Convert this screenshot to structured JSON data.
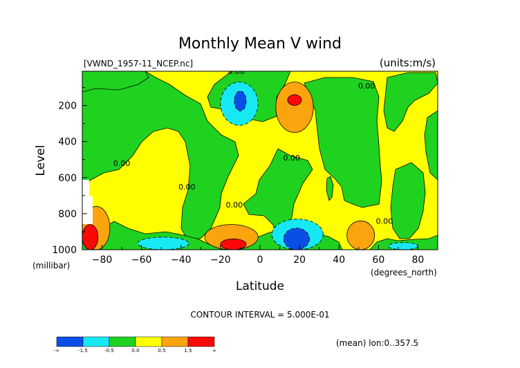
{
  "chart_data": {
    "type": "contour",
    "title": "Monthly Mean V wind",
    "dataset_label": "[VWND_1957-11_NCEP.nc]",
    "units_label": "(units:m/s)",
    "xlabel": "Latitude",
    "x_units": "(degrees_north)",
    "ylabel": "Level",
    "y_units": "(millibar)",
    "xlim": [
      -90,
      90
    ],
    "ylim": [
      1000,
      10
    ],
    "x_ticks": [
      -80,
      -60,
      -40,
      -20,
      0,
      20,
      40,
      60,
      80
    ],
    "y_ticks": [
      200,
      400,
      600,
      800,
      1000
    ],
    "contour_interval_text": "CONTOUR INTERVAL = 5.000E-01",
    "footer_text": "(mean) lon:0..357.5",
    "contour_labels": [
      {
        "text": "0.00",
        "lat": -12,
        "lev": 10
      },
      {
        "text": "0.00",
        "lat": 54,
        "lev": 90
      },
      {
        "text": "0.00",
        "lat": -70,
        "lev": 520
      },
      {
        "text": "0.00",
        "lat": -37,
        "lev": 650
      },
      {
        "text": "0.00",
        "lat": 16,
        "lev": 490
      },
      {
        "text": "0.00",
        "lat": -13,
        "lev": 750
      },
      {
        "text": "0.00",
        "lat": 63,
        "lev": 840
      }
    ],
    "colorbar": {
      "colors": [
        "#0a4fe5",
        "#17e9f4",
        "#1fd220",
        "#ffff00",
        "#fba40e",
        "#fb0808"
      ],
      "tick_labels": [
        "-∞",
        "-1.5",
        "-0.5",
        "0.0",
        "0.5",
        "1.5",
        "∞"
      ]
    },
    "regions": [
      {
        "level": "neg_strong",
        "lat": [
          -13,
          -7
        ],
        "lev": [
          120,
          230
        ]
      },
      {
        "level": "neg_mod",
        "lat": [
          -20,
          -1
        ],
        "lev": [
          70,
          310
        ]
      },
      {
        "level": "neg_strong",
        "lat": [
          12,
          25
        ],
        "lev": [
          880,
          1000
        ]
      },
      {
        "level": "neg_mod",
        "lat": [
          6,
          32
        ],
        "lev": [
          830,
          1000
        ]
      },
      {
        "level": "neg_mod",
        "lat": [
          -62,
          -36
        ],
        "lev": [
          930,
          1000
        ]
      },
      {
        "level": "neg_mod",
        "lat": [
          65,
          80
        ],
        "lev": [
          960,
          1000
        ]
      },
      {
        "level": "pos_strong",
        "lat": [
          14,
          21
        ],
        "lev": [
          140,
          200
        ]
      },
      {
        "level": "pos_mod",
        "lat": [
          8,
          27
        ],
        "lev": [
          70,
          350
        ]
      },
      {
        "level": "pos_strong",
        "lat": [
          -20,
          -7
        ],
        "lev": [
          940,
          1000
        ]
      },
      {
        "level": "pos_mod",
        "lat": [
          -28,
          -1
        ],
        "lev": [
          860,
          1000
        ]
      },
      {
        "level": "pos_strong",
        "lat": [
          -90,
          -82
        ],
        "lev": [
          860,
          1000
        ]
      },
      {
        "level": "pos_mod",
        "lat": [
          -90,
          -76
        ],
        "lev": [
          760,
          1000
        ]
      },
      {
        "level": "pos_mod",
        "lat": [
          44,
          58
        ],
        "lev": [
          840,
          1000
        ]
      }
    ]
  }
}
